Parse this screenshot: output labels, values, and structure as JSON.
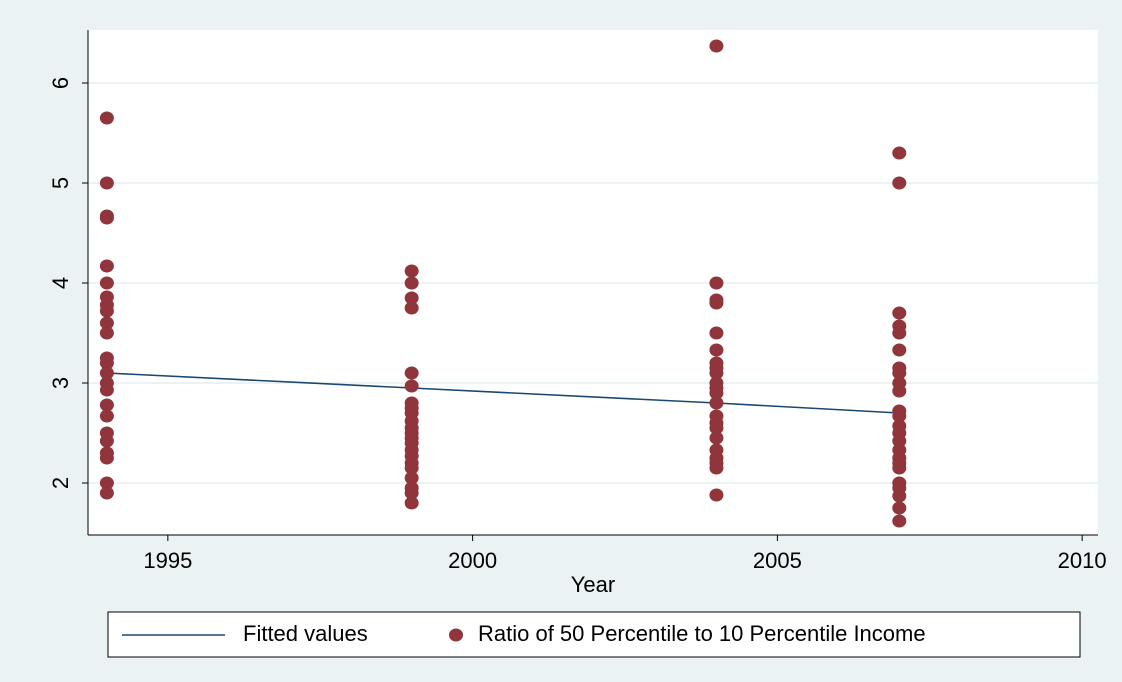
{
  "chart_data": {
    "type": "scatter",
    "x_label": "Year",
    "xlim": [
      1993.69,
      2010.26
    ],
    "ylim": [
      1.48,
      6.53
    ],
    "xticks": [
      1995,
      2000,
      2005,
      2010
    ],
    "yticks": [
      2,
      3,
      4,
      5,
      6
    ],
    "grid": true,
    "legend": "bottom",
    "series": [
      {
        "name": "Fitted values",
        "type": "line",
        "color": "#1a476f",
        "x": [
          1994,
          1999,
          2004,
          2007
        ],
        "values": [
          3.1,
          2.95,
          2.8,
          2.7
        ]
      },
      {
        "name": "Ratio of 50 Percentile to 10 Percentile Income",
        "type": "scatter",
        "color": "#90353b",
        "x": [
          1994,
          1994,
          1994,
          1994,
          1994,
          1994,
          1994,
          1994,
          1994,
          1994,
          1994,
          1994,
          1994,
          1994,
          1994,
          1994,
          1994,
          1994,
          1994,
          1994,
          1994,
          1994,
          1994,
          1994,
          1999,
          1999,
          1999,
          1999,
          1999,
          1999,
          1999,
          1999,
          1999,
          1999,
          1999,
          1999,
          1999,
          1999,
          1999,
          1999,
          1999,
          1999,
          1999,
          1999,
          1999,
          1999,
          2004,
          2004,
          2004,
          2004,
          2004,
          2004,
          2004,
          2004,
          2004,
          2004,
          2004,
          2004,
          2004,
          2004,
          2004,
          2004,
          2004,
          2004,
          2004,
          2004,
          2004,
          2004,
          2007,
          2007,
          2007,
          2007,
          2007,
          2007,
          2007,
          2007,
          2007,
          2007,
          2007,
          2007,
          2007,
          2007,
          2007,
          2007,
          2007,
          2007,
          2007,
          2007,
          2007,
          2007,
          2007,
          2007
        ],
        "values": [
          5.65,
          5.0,
          4.67,
          4.65,
          4.17,
          4.0,
          3.86,
          3.78,
          3.72,
          3.6,
          3.5,
          3.25,
          3.2,
          3.1,
          3.0,
          2.93,
          2.78,
          2.67,
          2.5,
          2.42,
          2.3,
          2.25,
          2.0,
          1.9,
          4.12,
          4.0,
          3.85,
          3.75,
          3.1,
          2.97,
          2.8,
          2.75,
          2.7,
          2.62,
          2.55,
          2.5,
          2.45,
          2.4,
          2.33,
          2.27,
          2.2,
          2.15,
          2.05,
          1.95,
          1.9,
          1.8,
          6.37,
          4.0,
          3.83,
          3.8,
          3.5,
          3.33,
          3.2,
          3.15,
          3.1,
          3.0,
          2.95,
          2.9,
          2.8,
          2.67,
          2.6,
          2.55,
          2.45,
          2.33,
          2.25,
          2.2,
          2.15,
          1.88,
          5.3,
          5.0,
          3.7,
          3.57,
          3.5,
          3.33,
          3.15,
          3.1,
          3.0,
          2.92,
          2.72,
          2.67,
          2.57,
          2.5,
          2.42,
          2.33,
          2.25,
          2.2,
          2.15,
          2.0,
          1.95,
          1.87,
          1.75,
          1.62
        ]
      }
    ]
  }
}
